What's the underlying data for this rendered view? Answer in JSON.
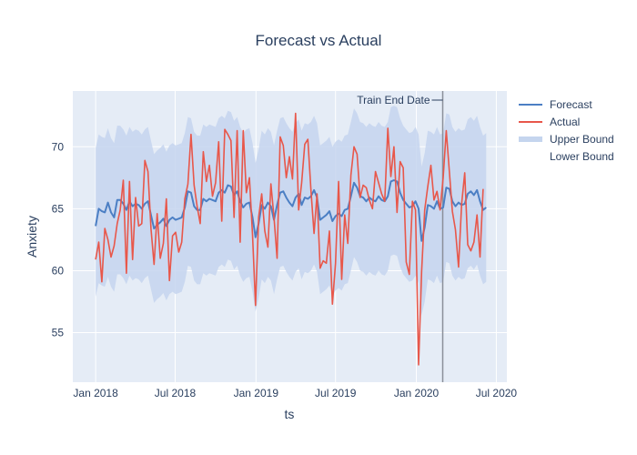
{
  "chart_data": {
    "type": "line",
    "title": "Forecast vs Actual",
    "xlabel": "ts",
    "ylabel": "Anxiety",
    "xlim": [
      "2017-11-10",
      "2020-07-25"
    ],
    "ylim": [
      51,
      74.5
    ],
    "x_ticks": [
      {
        "date": "2018-01-01",
        "label": "Jan 2018"
      },
      {
        "date": "2018-07-01",
        "label": "Jul 2018"
      },
      {
        "date": "2019-01-01",
        "label": "Jan 2019"
      },
      {
        "date": "2019-07-01",
        "label": "Jul 2019"
      },
      {
        "date": "2020-01-01",
        "label": "Jan 2020"
      },
      {
        "date": "2020-07-01",
        "label": "Jul 2020"
      }
    ],
    "y_ticks": [
      55,
      60,
      65,
      70
    ],
    "grid": true,
    "legend_position": "top-right",
    "annotation": {
      "label": "Train End Date",
      "date": "2020-03-01"
    },
    "colors": {
      "forecast": "#4c7fc4",
      "actual": "#e8574a",
      "band": "#c5d5ee",
      "plot_bg": "#e5ecf6",
      "vline": "#8a8f99"
    },
    "start_date": "2018-01-01",
    "step_days": 7,
    "series": [
      {
        "name": "Forecast",
        "values": [
          63.6,
          65.0,
          64.8,
          64.7,
          65.5,
          64.7,
          64.3,
          65.7,
          65.7,
          65.4,
          64.9,
          65.6,
          65.2,
          65.4,
          65.3,
          65.0,
          65.4,
          65.6,
          64.5,
          63.4,
          63.7,
          63.9,
          64.2,
          63.6,
          64.1,
          64.3,
          64.1,
          64.2,
          64.3,
          65.1,
          66.4,
          66.3,
          65.2,
          64.9,
          64.9,
          65.8,
          65.6,
          65.8,
          65.7,
          65.6,
          66.3,
          66.5,
          66.3,
          66.9,
          66.8,
          66.1,
          66.4,
          65.6,
          65.1,
          65.4,
          65.5,
          64.3,
          62.7,
          63.8,
          65.3,
          65.0,
          65.5,
          65.2,
          64.1,
          65.3,
          66.3,
          66.4,
          65.9,
          65.5,
          65.2,
          65.9,
          66.2,
          65.3,
          65.9,
          65.8,
          66.0,
          66.5,
          65.9,
          64.1,
          64.3,
          64.5,
          64.8,
          64.0,
          64.4,
          64.6,
          64.4,
          64.9,
          65.0,
          66.0,
          67.1,
          66.7,
          66.0,
          65.9,
          65.6,
          65.9,
          65.7,
          65.6,
          66.0,
          65.7,
          65.6,
          66.0,
          67.2,
          67.3,
          67.2,
          66.3,
          65.7,
          65.4,
          65.1,
          65.2,
          65.6,
          65.0,
          62.4,
          63.5,
          65.3,
          65.2,
          65.0,
          65.6,
          65.0,
          65.1,
          66.7,
          66.6,
          65.6,
          65.2,
          65.5,
          65.3,
          65.4,
          66.2,
          66.4,
          66.1,
          66.5,
          65.6,
          64.9,
          65.1
        ]
      },
      {
        "name": "Actual",
        "values": [
          60.9,
          62.3,
          59.1,
          63.4,
          62.5,
          61.1,
          62.0,
          63.8,
          64.9,
          67.3,
          59.8,
          67.2,
          60.9,
          65.9,
          63.6,
          63.8,
          68.9,
          68.0,
          63.4,
          60.5,
          64.6,
          61.0,
          62.2,
          65.8,
          59.2,
          62.8,
          63.1,
          61.5,
          62.3,
          65.8,
          67.0,
          71.0,
          66.9,
          65.2,
          63.8,
          69.6,
          67.2,
          68.5,
          66.0,
          67.1,
          70.4,
          64.0,
          71.4,
          71.0,
          70.5,
          64.3,
          71.3,
          62.3,
          71.3,
          66.3,
          67.5,
          62.9,
          57.2,
          64.3,
          66.2,
          63.2,
          61.9,
          67.0,
          64.3,
          61.0,
          70.8,
          70.1,
          67.5,
          69.2,
          67.4,
          72.7,
          64.9,
          67.1,
          70.2,
          70.6,
          66.5,
          63.0,
          66.2,
          60.2,
          60.8,
          60.6,
          63.2,
          57.3,
          60.6,
          67.2,
          59.3,
          64.5,
          62.2,
          67.7,
          70.0,
          69.4,
          65.9,
          66.9,
          66.7,
          65.7,
          65.0,
          68.0,
          67.1,
          66.2,
          65.6,
          71.5,
          67.6,
          70.0,
          64.7,
          68.8,
          68.3,
          60.7,
          59.7,
          65.6,
          64.9,
          52.4,
          59.9,
          64.9,
          66.8,
          68.5,
          65.7,
          66.4,
          64.9,
          67.5,
          71.3,
          68.0,
          64.8,
          63.3,
          60.3,
          65.4,
          67.9,
          62.1,
          61.6,
          62.3,
          64.5,
          61.1,
          66.6
        ]
      },
      {
        "name": "Upper Bound",
        "values": [
          69.9,
          71.0,
          70.8,
          70.7,
          71.5,
          70.7,
          70.3,
          71.7,
          71.7,
          71.4,
          70.9,
          71.6,
          71.2,
          71.4,
          71.3,
          71.0,
          71.4,
          71.6,
          70.5,
          69.4,
          69.7,
          69.9,
          70.2,
          69.6,
          70.1,
          70.3,
          70.1,
          70.2,
          70.3,
          71.1,
          72.4,
          72.3,
          71.2,
          70.9,
          70.9,
          71.8,
          71.6,
          71.8,
          71.7,
          71.6,
          72.3,
          72.5,
          72.3,
          72.9,
          72.8,
          72.1,
          72.4,
          71.6,
          71.1,
          71.4,
          71.5,
          70.3,
          68.7,
          69.8,
          71.3,
          71.0,
          71.5,
          71.2,
          70.1,
          71.3,
          72.3,
          72.4,
          71.9,
          71.5,
          71.2,
          71.9,
          72.2,
          71.3,
          71.9,
          71.8,
          72.0,
          72.5,
          71.9,
          70.1,
          70.3,
          70.5,
          70.8,
          70.0,
          70.4,
          70.6,
          70.4,
          70.9,
          71.0,
          72.0,
          73.1,
          72.7,
          72.0,
          71.9,
          71.6,
          71.9,
          71.7,
          71.6,
          72.0,
          71.7,
          71.6,
          72.0,
          73.2,
          73.3,
          73.2,
          72.3,
          71.7,
          71.4,
          71.1,
          71.2,
          71.6,
          71.0,
          68.4,
          69.5,
          71.3,
          71.2,
          71.0,
          71.6,
          71.0,
          71.1,
          72.7,
          72.6,
          71.6,
          71.2,
          71.5,
          71.3,
          71.4,
          72.2,
          72.4,
          72.1,
          72.5,
          71.6,
          70.9,
          71.1
        ]
      },
      {
        "name": "Lower Bound",
        "values": [
          57.9,
          59.0,
          58.8,
          58.7,
          59.5,
          58.7,
          58.3,
          59.7,
          59.7,
          59.4,
          58.9,
          59.6,
          59.2,
          59.4,
          59.3,
          59.0,
          59.4,
          59.6,
          58.5,
          57.4,
          57.7,
          57.9,
          58.2,
          57.6,
          58.1,
          58.3,
          58.1,
          58.2,
          58.3,
          59.1,
          60.4,
          60.3,
          59.2,
          58.9,
          58.9,
          59.8,
          59.6,
          59.8,
          59.7,
          59.6,
          60.3,
          60.5,
          60.3,
          60.9,
          60.8,
          60.1,
          60.4,
          59.6,
          59.1,
          59.4,
          59.5,
          58.3,
          56.7,
          57.8,
          59.3,
          59.0,
          59.5,
          59.2,
          58.1,
          59.3,
          60.3,
          60.4,
          59.9,
          59.5,
          59.2,
          59.9,
          60.2,
          59.3,
          59.9,
          59.8,
          60.0,
          60.5,
          59.9,
          58.1,
          58.3,
          58.5,
          58.8,
          58.0,
          58.4,
          58.6,
          58.4,
          58.9,
          59.0,
          60.0,
          61.1,
          60.7,
          60.0,
          59.9,
          59.6,
          59.9,
          59.7,
          59.6,
          60.0,
          59.7,
          59.6,
          60.0,
          61.2,
          61.3,
          61.2,
          60.3,
          59.7,
          59.4,
          59.1,
          59.2,
          59.6,
          59.0,
          56.4,
          57.5,
          59.3,
          59.2,
          59.0,
          59.6,
          59.0,
          59.1,
          60.7,
          60.6,
          59.6,
          59.2,
          59.5,
          59.3,
          59.4,
          60.2,
          60.4,
          60.1,
          60.5,
          59.6,
          58.9,
          59.1
        ]
      }
    ]
  }
}
